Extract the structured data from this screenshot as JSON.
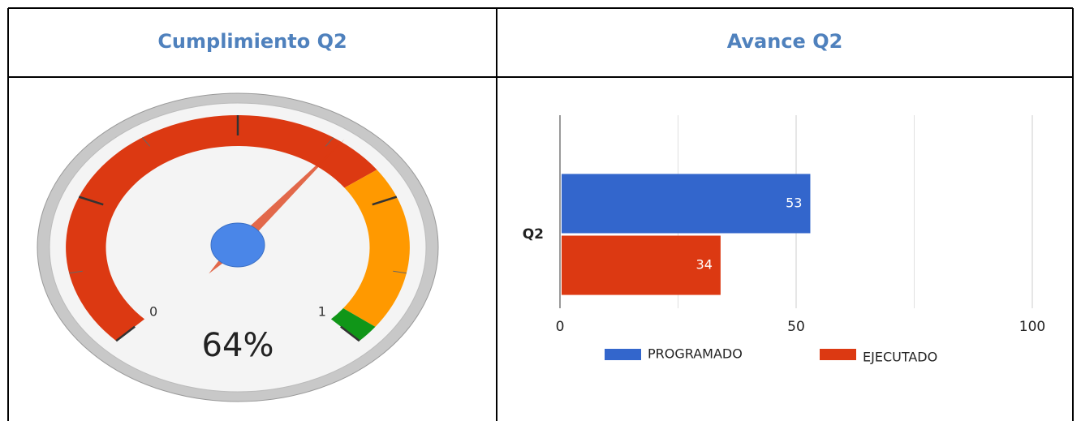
{
  "chart_data": [
    {
      "type": "gauge",
      "title": "Cumplimiento Q2",
      "value": 0.64,
      "value_label": "64%",
      "lim": [
        0,
        1
      ],
      "ticks": [
        0,
        1
      ],
      "major_ticks": [
        0,
        0.25,
        0.5,
        0.75,
        1
      ],
      "minor_ticks": [
        0.125,
        0.375,
        0.625,
        0.875
      ],
      "bands": [
        {
          "from": 0,
          "to": 0.7,
          "color": "#dc3912"
        },
        {
          "from": 0.7,
          "to": 0.97,
          "color": "#ff9900"
        },
        {
          "from": 0.97,
          "to": 1,
          "color": "#109618"
        }
      ],
      "needle_color": "#dc3912"
    },
    {
      "type": "bar",
      "orientation": "horizontal",
      "title": "Avance Q2",
      "categories": [
        "Q2"
      ],
      "series": [
        {
          "name": "PROGRAMADO",
          "color": "#3366cc",
          "values": [
            53
          ]
        },
        {
          "name": "EJECUTADO",
          "color": "#dc3912",
          "values": [
            34
          ]
        }
      ],
      "xlim": [
        0,
        100
      ],
      "xticks": [
        0,
        50,
        100
      ],
      "minor_xticks": [
        25,
        75
      ],
      "grid": true,
      "legend": "bottom"
    }
  ]
}
